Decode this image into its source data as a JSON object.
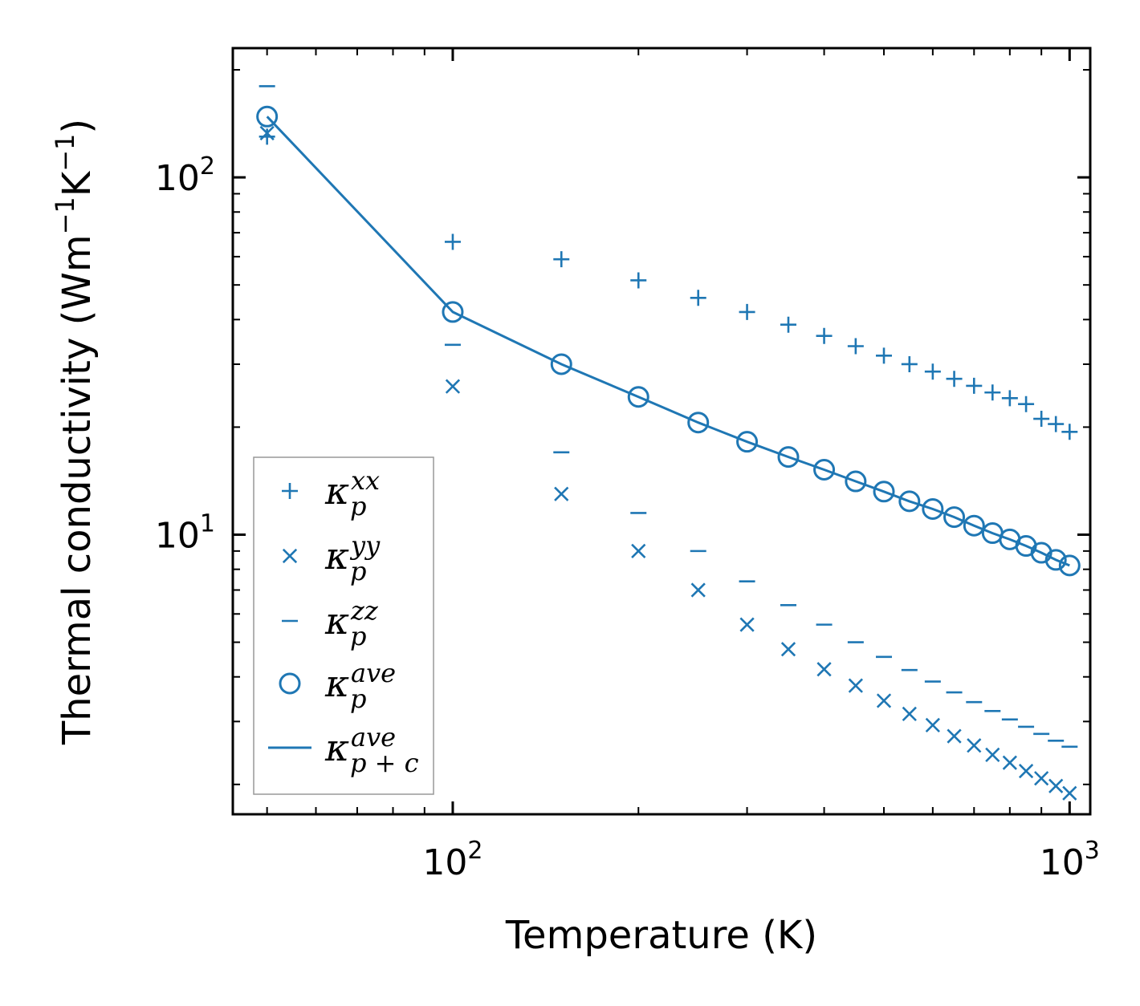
{
  "chart_data": {
    "type": "scatter",
    "scale": {
      "x": "log",
      "y": "log"
    },
    "xlabel": "Temperature (K)",
    "ylabel": "Thermal conductivity (Wm",
    "ylabel_sup1": "−1",
    "ylabel_mid": "K",
    "ylabel_sup2": "−1",
    "ylabel_end": ")",
    "xlim": [
      44,
      1080
    ],
    "ylim": [
      1.65,
      230
    ],
    "x_major_ticks": [
      {
        "value": 100,
        "base": "10",
        "exp": "2"
      },
      {
        "value": 1000,
        "base": "10",
        "exp": "3"
      }
    ],
    "y_major_ticks": [
      {
        "value": 10,
        "base": "10",
        "exp": "1"
      },
      {
        "value": 100,
        "base": "10",
        "exp": "2"
      }
    ],
    "x": [
      50,
      100,
      150,
      200,
      250,
      300,
      350,
      400,
      450,
      500,
      550,
      600,
      650,
      700,
      750,
      800,
      850,
      900,
      950,
      1000
    ],
    "color": "#1f77b4",
    "series": [
      {
        "name": "kappa_p_xx",
        "marker": "plus",
        "values": [
          130,
          66,
          59,
          51.5,
          46,
          42,
          38.7,
          36,
          33.7,
          31.7,
          30,
          28.6,
          27.3,
          26.1,
          25,
          24.1,
          23.2,
          21.1,
          20.4,
          19.4
        ]
      },
      {
        "name": "kappa_p_yy",
        "marker": "x",
        "values": [
          133,
          26,
          13,
          9,
          7,
          5.6,
          4.78,
          4.2,
          3.78,
          3.43,
          3.15,
          2.93,
          2.73,
          2.57,
          2.42,
          2.3,
          2.18,
          2.08,
          1.98,
          1.89
        ]
      },
      {
        "name": "kappa_p_zz",
        "marker": "hline",
        "values": [
          180,
          34,
          17,
          11.5,
          9,
          7.4,
          6.35,
          5.6,
          5.0,
          4.55,
          4.18,
          3.88,
          3.62,
          3.4,
          3.21,
          3.04,
          2.9,
          2.77,
          2.65,
          2.55
        ]
      },
      {
        "name": "kappa_p_ave",
        "marker": "circle",
        "values": [
          148,
          42,
          30,
          24.3,
          20.6,
          18.2,
          16.5,
          15.2,
          14.1,
          13.2,
          12.4,
          11.8,
          11.2,
          10.6,
          10.1,
          9.7,
          9.3,
          8.9,
          8.5,
          8.2
        ]
      },
      {
        "name": "kappa_p+c_ave",
        "marker": "line",
        "values": [
          148,
          42,
          30,
          24.3,
          20.6,
          18.2,
          16.5,
          15.2,
          14.1,
          13.2,
          12.4,
          11.8,
          11.2,
          10.6,
          10.1,
          9.7,
          9.3,
          8.9,
          8.5,
          8.2
        ]
      }
    ],
    "legend": {
      "placement": "lower-left",
      "entries": [
        {
          "marker": "plus",
          "base": "κ",
          "sup": "xx",
          "sub": "p"
        },
        {
          "marker": "x",
          "base": "κ",
          "sup": "yy",
          "sub": "p"
        },
        {
          "marker": "hline",
          "base": "κ",
          "sup": "zz",
          "sub": "p"
        },
        {
          "marker": "circle",
          "base": "κ",
          "sup": "ave",
          "sub": "p"
        },
        {
          "marker": "line",
          "base": "κ",
          "sup": "ave",
          "sub": "p + c"
        }
      ]
    }
  }
}
